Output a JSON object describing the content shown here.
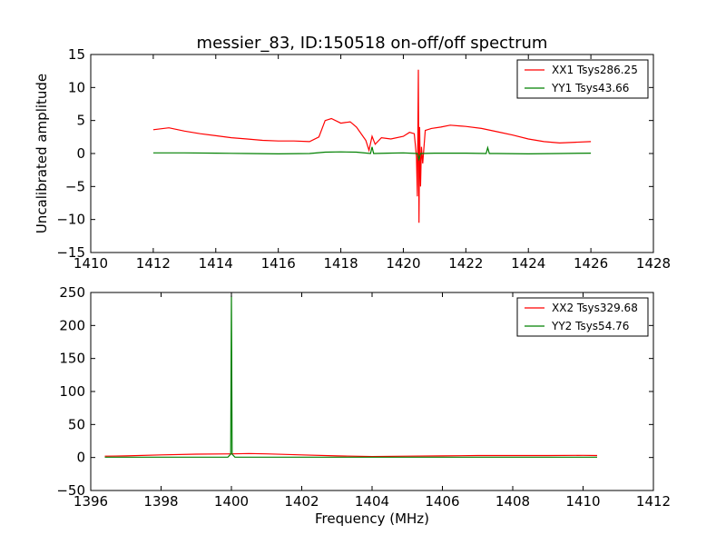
{
  "chart_data": [
    {
      "type": "line",
      "title": "messier_83, ID:150518 on-off/off spectrum",
      "xlabel": "",
      "ylabel": "Uncalibrated amplitude",
      "xlim": [
        1410,
        1428
      ],
      "ylim": [
        -15,
        15
      ],
      "xticks": [
        1410,
        1412,
        1414,
        1416,
        1418,
        1420,
        1422,
        1424,
        1426,
        1428
      ],
      "yticks": [
        -15,
        -10,
        -5,
        0,
        5,
        10,
        15
      ],
      "legend_position": "top-right",
      "series": [
        {
          "name": "XX1 Tsys286.25",
          "color": "#ff0000",
          "x": [
            1412.0,
            1412.5,
            1413.0,
            1413.5,
            1414.0,
            1414.5,
            1415.0,
            1415.5,
            1416.0,
            1416.5,
            1417.0,
            1417.3,
            1417.5,
            1417.7,
            1418.0,
            1418.3,
            1418.5,
            1418.8,
            1418.9,
            1419.0,
            1419.1,
            1419.3,
            1419.6,
            1420.0,
            1420.2,
            1420.35,
            1420.42,
            1420.45,
            1420.48,
            1420.5,
            1420.52,
            1420.55,
            1420.58,
            1420.62,
            1420.7,
            1420.9,
            1421.2,
            1421.5,
            1422.0,
            1422.5,
            1423.0,
            1423.5,
            1424.0,
            1424.5,
            1425.0,
            1425.5,
            1426.0
          ],
          "y": [
            3.6,
            3.9,
            3.4,
            3.0,
            2.7,
            2.4,
            2.2,
            2.0,
            1.9,
            1.9,
            1.8,
            2.5,
            5.0,
            5.3,
            4.6,
            4.8,
            4.0,
            2.0,
            0.5,
            2.6,
            1.4,
            2.4,
            2.2,
            2.6,
            3.2,
            3.0,
            -0.5,
            -6.5,
            12.7,
            -10.5,
            4.0,
            -5.0,
            1.0,
            -1.5,
            3.5,
            3.8,
            4.0,
            4.3,
            4.1,
            3.8,
            3.3,
            2.8,
            2.2,
            1.8,
            1.6,
            1.7,
            1.8
          ]
        },
        {
          "name": "YY1 Tsys43.66",
          "color": "#008000",
          "x": [
            1412.0,
            1413.0,
            1414.0,
            1415.0,
            1416.0,
            1417.0,
            1417.5,
            1418.0,
            1418.5,
            1418.95,
            1419.0,
            1419.05,
            1419.5,
            1420.0,
            1420.45,
            1420.5,
            1420.55,
            1421.0,
            1422.0,
            1422.65,
            1422.7,
            1422.75,
            1423.0,
            1424.0,
            1425.0,
            1426.0
          ],
          "y": [
            0.1,
            0.1,
            0.05,
            0.0,
            -0.05,
            0.0,
            0.2,
            0.25,
            0.2,
            0.0,
            1.0,
            0.0,
            0.05,
            0.1,
            0.0,
            -0.9,
            0.0,
            0.05,
            0.05,
            0.0,
            0.9,
            0.0,
            0.0,
            -0.05,
            0.0,
            0.05
          ]
        }
      ]
    },
    {
      "type": "line",
      "title": "",
      "xlabel": "Frequency (MHz)",
      "ylabel": "",
      "xlim": [
        1396,
        1412
      ],
      "ylim": [
        -50,
        250
      ],
      "xticks": [
        1396,
        1398,
        1400,
        1402,
        1404,
        1406,
        1408,
        1410,
        1412
      ],
      "yticks": [
        -50,
        0,
        50,
        100,
        150,
        200,
        250
      ],
      "legend_position": "top-right",
      "series": [
        {
          "name": "XX2 Tsys329.68",
          "color": "#ff0000",
          "x": [
            1396.4,
            1397.0,
            1398.0,
            1399.0,
            1400.0,
            1400.5,
            1401.0,
            1402.0,
            1403.0,
            1404.0,
            1405.0,
            1406.0,
            1407.0,
            1408.0,
            1409.0,
            1410.0,
            1410.4
          ],
          "y": [
            2.0,
            2.5,
            4.0,
            5.0,
            5.5,
            6.0,
            5.5,
            4.0,
            2.5,
            1.5,
            2.0,
            2.5,
            3.0,
            3.0,
            3.0,
            3.2,
            3.0
          ]
        },
        {
          "name": "YY2 Tsys54.76",
          "color": "#008000",
          "x": [
            1396.4,
            1398.0,
            1399.9,
            1399.98,
            1400.0,
            1400.02,
            1400.1,
            1402.0,
            1404.0,
            1406.0,
            1408.0,
            1410.0,
            1410.4
          ],
          "y": [
            0.5,
            0.5,
            0.5,
            5.0,
            245.0,
            5.0,
            0.5,
            0.5,
            0.5,
            0.5,
            0.5,
            0.5,
            0.5
          ]
        }
      ]
    }
  ]
}
